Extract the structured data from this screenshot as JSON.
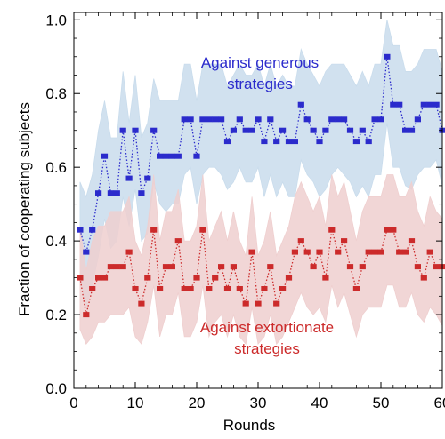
{
  "chart_data": {
    "type": "line",
    "xlabel": "Rounds",
    "ylabel": "Fraction of cooperating subjects",
    "xlim": [
      0,
      60
    ],
    "ylim": [
      0,
      1.02
    ],
    "xticks": [
      "0",
      "10",
      "20",
      "30",
      "40",
      "50",
      "60"
    ],
    "yticks": [
      "0.0",
      "0.2",
      "0.4",
      "0.6",
      "0.8",
      "1.0"
    ],
    "x_values": [
      1,
      2,
      3,
      4,
      5,
      6,
      7,
      8,
      9,
      10,
      11,
      12,
      13,
      14,
      15,
      16,
      17,
      18,
      19,
      20,
      21,
      22,
      23,
      24,
      25,
      26,
      27,
      28,
      29,
      30,
      31,
      32,
      33,
      34,
      35,
      36,
      37,
      38,
      39,
      40,
      41,
      42,
      43,
      44,
      45,
      46,
      47,
      48,
      49,
      50,
      51,
      52,
      53,
      54,
      55,
      56,
      57,
      58,
      59,
      60
    ],
    "grid": false,
    "series": [
      {
        "name": "Against generous strategies",
        "color": "#2b2bcc",
        "band_color": "#c9dcec",
        "values": [
          0.43,
          0.37,
          0.43,
          0.53,
          0.63,
          0.53,
          0.53,
          0.7,
          0.57,
          0.7,
          0.53,
          0.57,
          0.7,
          0.63,
          0.63,
          0.63,
          0.63,
          0.73,
          0.73,
          0.63,
          0.73,
          0.73,
          0.73,
          0.73,
          0.67,
          0.7,
          0.73,
          0.7,
          0.7,
          0.73,
          0.67,
          0.73,
          0.67,
          0.7,
          0.67,
          0.67,
          0.77,
          0.73,
          0.7,
          0.67,
          0.7,
          0.73,
          0.73,
          0.73,
          0.7,
          0.67,
          0.7,
          0.67,
          0.73,
          0.73,
          0.9,
          0.77,
          0.77,
          0.7,
          0.7,
          0.73,
          0.77,
          0.77,
          0.77,
          0.7
        ],
        "lower": [
          0.3,
          0.22,
          0.28,
          0.36,
          0.46,
          0.38,
          0.4,
          0.52,
          0.44,
          0.54,
          0.4,
          0.42,
          0.56,
          0.5,
          0.48,
          0.5,
          0.5,
          0.58,
          0.6,
          0.5,
          0.58,
          0.6,
          0.6,
          0.58,
          0.54,
          0.56,
          0.6,
          0.56,
          0.56,
          0.6,
          0.52,
          0.58,
          0.52,
          0.56,
          0.52,
          0.52,
          0.62,
          0.58,
          0.56,
          0.52,
          0.54,
          0.58,
          0.6,
          0.58,
          0.56,
          0.52,
          0.55,
          0.52,
          0.58,
          0.58,
          0.72,
          0.6,
          0.6,
          0.55,
          0.54,
          0.58,
          0.6,
          0.6,
          0.62,
          0.55
        ],
        "upper": [
          0.56,
          0.52,
          0.58,
          0.7,
          0.78,
          0.68,
          0.68,
          0.86,
          0.72,
          0.85,
          0.68,
          0.72,
          0.84,
          0.78,
          0.78,
          0.78,
          0.78,
          0.88,
          0.88,
          0.78,
          0.88,
          0.88,
          0.88,
          0.88,
          0.82,
          0.85,
          0.88,
          0.85,
          0.85,
          0.88,
          0.82,
          0.88,
          0.82,
          0.85,
          0.82,
          0.82,
          0.92,
          0.88,
          0.85,
          0.82,
          0.86,
          0.88,
          0.88,
          0.88,
          0.85,
          0.82,
          0.86,
          0.82,
          0.88,
          0.88,
          1.0,
          0.93,
          0.93,
          0.86,
          0.86,
          0.88,
          0.92,
          0.92,
          0.92,
          0.86
        ]
      },
      {
        "name": "Against extortionate strategies",
        "color": "#cc2b2b",
        "band_color": "#efcfcf",
        "values": [
          0.3,
          0.2,
          0.27,
          0.3,
          0.3,
          0.33,
          0.33,
          0.33,
          0.37,
          0.27,
          0.23,
          0.3,
          0.43,
          0.27,
          0.33,
          0.33,
          0.4,
          0.27,
          0.27,
          0.3,
          0.43,
          0.27,
          0.3,
          0.33,
          0.27,
          0.33,
          0.27,
          0.23,
          0.37,
          0.23,
          0.27,
          0.33,
          0.23,
          0.27,
          0.3,
          0.37,
          0.4,
          0.37,
          0.33,
          0.37,
          0.3,
          0.43,
          0.37,
          0.4,
          0.33,
          0.27,
          0.33,
          0.37,
          0.37,
          0.37,
          0.43,
          0.43,
          0.37,
          0.37,
          0.4,
          0.33,
          0.3,
          0.37,
          0.33,
          0.33
        ],
        "lower": [
          0.16,
          0.12,
          0.14,
          0.18,
          0.18,
          0.2,
          0.2,
          0.2,
          0.22,
          0.14,
          0.12,
          0.18,
          0.28,
          0.14,
          0.2,
          0.2,
          0.26,
          0.14,
          0.14,
          0.18,
          0.28,
          0.14,
          0.18,
          0.2,
          0.14,
          0.2,
          0.14,
          0.12,
          0.22,
          0.12,
          0.14,
          0.2,
          0.12,
          0.14,
          0.18,
          0.22,
          0.26,
          0.22,
          0.2,
          0.22,
          0.18,
          0.28,
          0.22,
          0.26,
          0.2,
          0.14,
          0.2,
          0.22,
          0.22,
          0.22,
          0.28,
          0.28,
          0.22,
          0.22,
          0.26,
          0.2,
          0.18,
          0.22,
          0.2,
          0.17
        ],
        "upper": [
          0.44,
          0.32,
          0.4,
          0.44,
          0.44,
          0.48,
          0.48,
          0.48,
          0.52,
          0.4,
          0.36,
          0.44,
          0.58,
          0.4,
          0.48,
          0.48,
          0.54,
          0.4,
          0.4,
          0.44,
          0.58,
          0.4,
          0.44,
          0.48,
          0.4,
          0.48,
          0.4,
          0.36,
          0.52,
          0.36,
          0.4,
          0.48,
          0.36,
          0.4,
          0.44,
          0.52,
          0.56,
          0.52,
          0.48,
          0.52,
          0.44,
          0.58,
          0.52,
          0.56,
          0.48,
          0.4,
          0.48,
          0.52,
          0.52,
          0.52,
          0.58,
          0.58,
          0.52,
          0.52,
          0.56,
          0.48,
          0.44,
          0.52,
          0.48,
          0.46
        ]
      }
    ],
    "annotations": [
      {
        "lines": [
          "Against generous",
          "strategies"
        ],
        "color": "#2b2bcc"
      },
      {
        "lines": [
          "Against extortionate",
          "strategies"
        ],
        "color": "#cc2b2b"
      }
    ]
  }
}
